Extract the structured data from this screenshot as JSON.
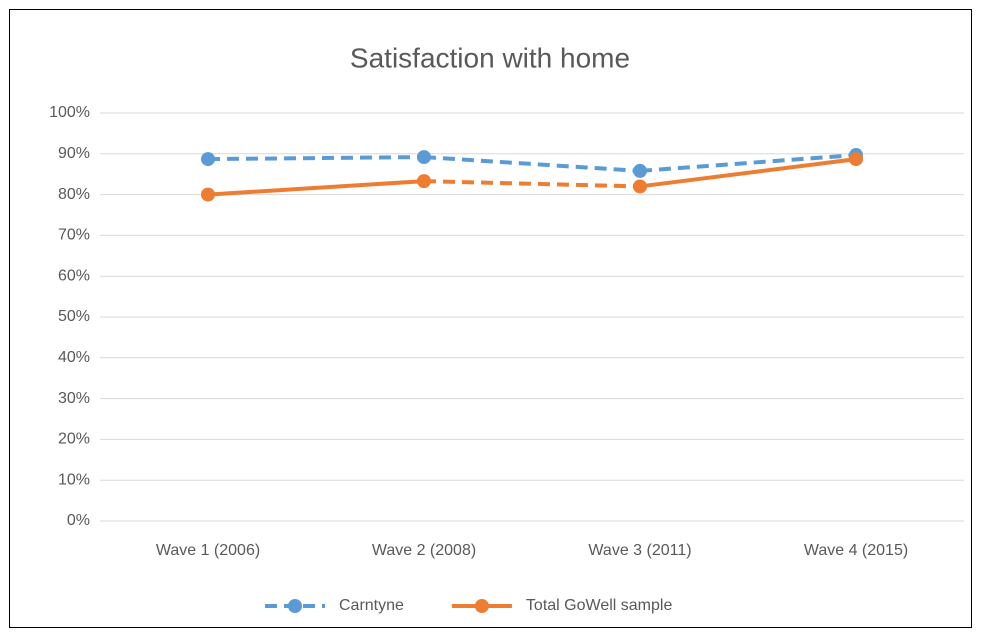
{
  "chart_data": {
    "type": "line",
    "title": "Satisfaction with home",
    "categories": [
      "Wave 1 (2006)",
      "Wave 2 (2008)",
      "Wave 3 (2011)",
      "Wave 4 (2015)"
    ],
    "series": [
      {
        "name": "Carntyne",
        "color": "#5b9bd5",
        "values": [
          88.7,
          89.2,
          85.8,
          89.7
        ],
        "segment_dash": [
          true,
          true,
          true
        ]
      },
      {
        "name": "Total GoWell sample",
        "color": "#ed7d31",
        "values": [
          80,
          83.3,
          82,
          88.7
        ],
        "segment_dash": [
          false,
          true,
          false
        ]
      }
    ],
    "ylim": [
      0,
      100
    ],
    "yticks": [
      {
        "value": 0,
        "label": "0%"
      },
      {
        "value": 10,
        "label": "10%"
      },
      {
        "value": 20,
        "label": "20%"
      },
      {
        "value": 30,
        "label": "30%"
      },
      {
        "value": 40,
        "label": "40%"
      },
      {
        "value": 50,
        "label": "50%"
      },
      {
        "value": 60,
        "label": "60%"
      },
      {
        "value": 70,
        "label": "70%"
      },
      {
        "value": 80,
        "label": "80%"
      },
      {
        "value": 90,
        "label": "90%"
      },
      {
        "value": 100,
        "label": "100%"
      }
    ],
    "grid": true,
    "legend": "bottom"
  }
}
